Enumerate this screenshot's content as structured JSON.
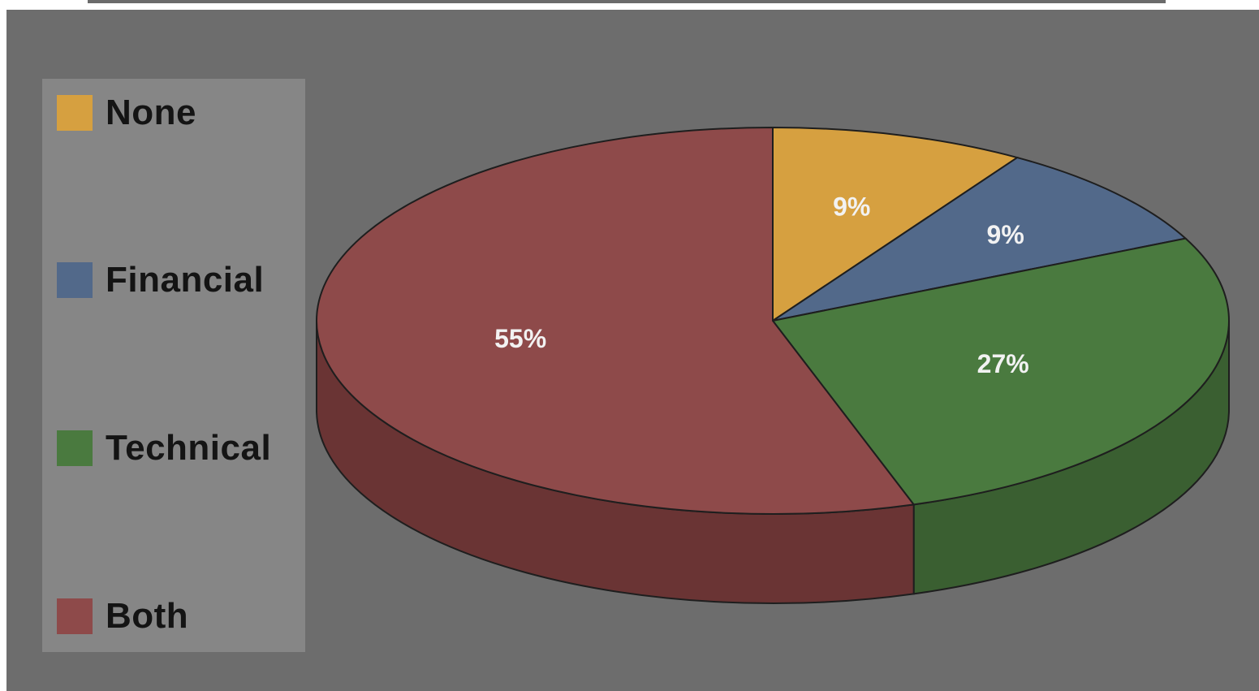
{
  "chart_data": {
    "type": "pie",
    "style": "3d",
    "title": "",
    "legend_position": "left",
    "slices": [
      {
        "label": "None",
        "value": 9,
        "display": "9%",
        "color": "#d6a040",
        "side_color": "#a77a2c"
      },
      {
        "label": "Financial",
        "value": 9,
        "display": "9%",
        "color": "#52698a",
        "side_color": "#3c4f69"
      },
      {
        "label": "Technical",
        "value": 27,
        "display": "27%",
        "color": "#4a7a3f",
        "side_color": "#3a5f31"
      },
      {
        "label": "Both",
        "value": 55,
        "display": "55%",
        "color": "#8e4a4a",
        "side_color": "#6a3434"
      }
    ]
  },
  "colors": {
    "background": "#6d6d6d",
    "legend_background": "#868686",
    "label_text": "#f2f2f2"
  }
}
